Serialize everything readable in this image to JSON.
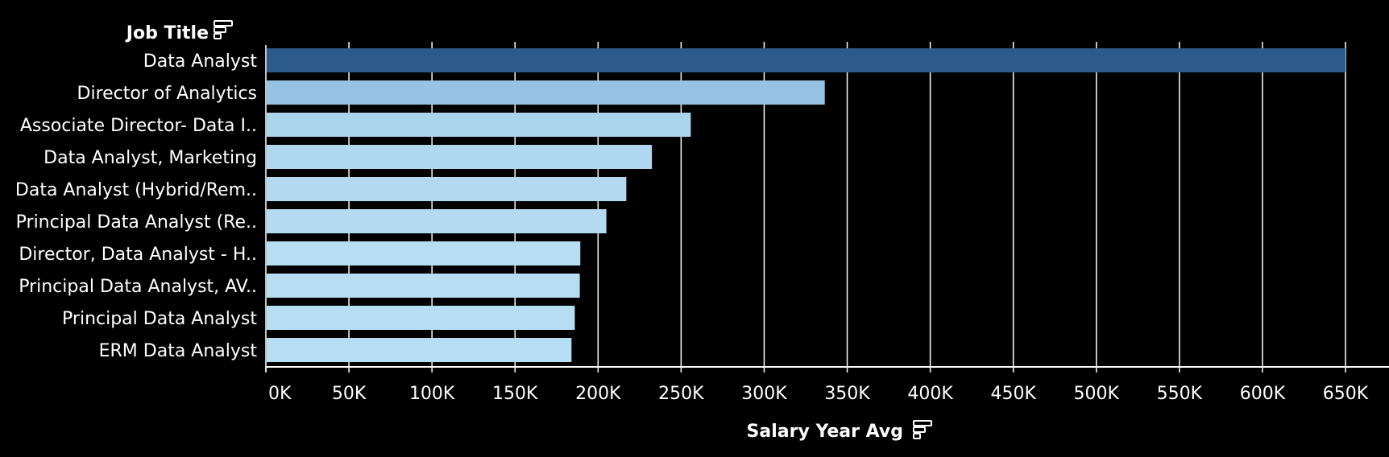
{
  "chart_data": {
    "type": "bar",
    "orientation": "horizontal",
    "categories": [
      "Data Analyst",
      "Director of Analytics",
      "Associate Director- Data I..",
      "Data Analyst, Marketing",
      "Data Analyst (Hybrid/Rem..",
      "Principal Data Analyst (Re..",
      "Director, Data Analyst - H..",
      "Principal Data Analyst, AV..",
      "Principal Data Analyst",
      "ERM Data Analyst"
    ],
    "values": [
      650000,
      336500,
      255830,
      232424,
      217000,
      205000,
      189309,
      189000,
      186000,
      184000
    ],
    "xlabel": "Salary Year Avg",
    "ylabel": "Job Title",
    "xlim": [
      0,
      650000
    ],
    "x_ticks": [
      "0K",
      "50K",
      "100K",
      "150K",
      "200K",
      "250K",
      "300K",
      "350K",
      "400K",
      "450K",
      "500K",
      "550K",
      "600K",
      "650K"
    ],
    "grid": "vertical",
    "colors": {
      "background": "#000000",
      "bar_max": "#2c5a8a",
      "bar_mid": "#7fb0d8",
      "bar_min": "#b6ddf2",
      "grid": "#ffffff",
      "text": "#ffffff"
    },
    "sort_icons": [
      "sort-descending-icon",
      "sort-descending-icon"
    ]
  }
}
